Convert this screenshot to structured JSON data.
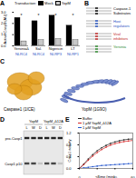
{
  "chart_data": [
    {
      "panel": "A",
      "type": "bar",
      "ylabel": "Active Casp1 (AU)",
      "legend_title": "Transduction:",
      "categories": [
        "Yersinia∆",
        "Sal.",
        "Nigericin",
        "LT"
      ],
      "sensors": [
        "NLRC4",
        "NLRC4",
        "NLRP3",
        "NLRP1"
      ],
      "significance": [
        "*",
        "*",
        "*",
        "*"
      ],
      "series": [
        {
          "name": "Mock",
          "color": "#000000",
          "values": [
            2.5,
            2.2,
            2.7,
            1.8
          ]
        },
        {
          "name": "YopM",
          "color": "#c8c8c8",
          "values": [
            0.4,
            0.5,
            0.6,
            0.5
          ]
        }
      ],
      "ylim": [
        0,
        3
      ],
      "yticks": [
        0,
        1,
        2,
        3
      ]
    },
    {
      "panel": "E",
      "type": "line",
      "xlabel": "Time (min)",
      "ylabel": "Casp1 activity",
      "x": [
        0,
        5,
        10,
        15,
        20,
        25,
        30,
        35,
        40,
        45,
        50,
        55,
        60
      ],
      "series": [
        {
          "name": "Buffer",
          "color": "#222222",
          "values": [
            0,
            0.15,
            0.32,
            0.47,
            0.6,
            0.7,
            0.78,
            0.85,
            0.9,
            0.94,
            0.97,
            0.99,
            1.0
          ]
        },
        {
          "name": "1 μM YopM_∆12A",
          "color": "#d62728",
          "values": [
            0,
            0.13,
            0.28,
            0.42,
            0.54,
            0.64,
            0.72,
            0.79,
            0.84,
            0.88,
            0.91,
            0.93,
            0.95
          ]
        },
        {
          "name": "1 μM YopM",
          "color": "#2255cc",
          "values": [
            0,
            0.02,
            0.04,
            0.06,
            0.08,
            0.1,
            0.11,
            0.12,
            0.13,
            0.14,
            0.15,
            0.16,
            0.17
          ]
        }
      ],
      "xlim": [
        0,
        60
      ],
      "xticks": [
        0,
        20,
        40,
        60
      ],
      "ylim": [
        0,
        1.2
      ],
      "yticks": [
        0,
        0.4,
        0.8,
        1.2
      ]
    }
  ],
  "alignment": {
    "panel": "B",
    "groups": [
      {
        "label": "Caspase-1 Substrates",
        "color": "#000000"
      },
      {
        "label": "Host regulators",
        "color": "#1f4fbf"
      },
      {
        "label": "Viral inhibitors",
        "color": "#c02020"
      },
      {
        "label": "Yersinia",
        "color": "#2a8a2a"
      }
    ]
  },
  "structures": {
    "panel": "C",
    "items": [
      "Caspase1 (1ICE)",
      "YopM (1G9O)"
    ]
  },
  "gel": {
    "panel": "D",
    "groups": [
      "YopM",
      "YopM_∆12A"
    ],
    "lanes": [
      "L",
      "W",
      "D"
    ],
    "bands": [
      "pro-Casp1",
      "Casp1 p10"
    ]
  }
}
